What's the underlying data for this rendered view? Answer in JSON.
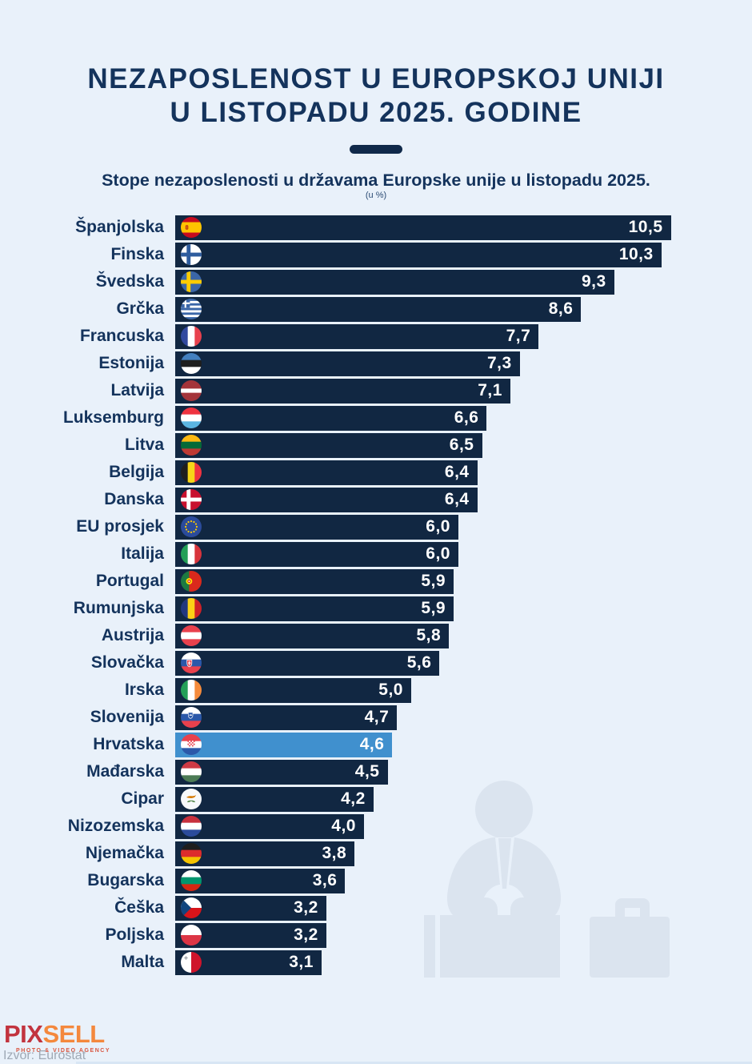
{
  "title": {
    "line1": "NEZAPOSLENOST U EUROPSKOJ UNIJI",
    "line2": "U LISTOPADU 2025. GODINE"
  },
  "subtitle": "Stope nezaposlenosti u državama Europske unije u listopadu 2025.",
  "unit_note": "(u %)",
  "colors": {
    "background": "#E9F1FA",
    "bar": "#112742",
    "highlight": "#4090CE",
    "text": "#14335C",
    "value_text": "#FFFFFF",
    "watermark": "#DBE4EF",
    "logo_pix": "#C2333E",
    "logo_sell": "#F4883D"
  },
  "chart_data": {
    "type": "bar",
    "orientation": "horizontal",
    "unit": "%",
    "xlim": [
      0,
      10.5
    ],
    "grid": false,
    "legend": "none",
    "highlight_category": "Hrvatska",
    "rows": [
      {
        "label": "Španjolska",
        "flag": "spain",
        "value": 10.5,
        "value_label": "10,5"
      },
      {
        "label": "Finska",
        "flag": "finland",
        "value": 10.3,
        "value_label": "10,3"
      },
      {
        "label": "Švedska",
        "flag": "sweden",
        "value": 9.3,
        "value_label": "9,3"
      },
      {
        "label": "Grčka",
        "flag": "greece",
        "value": 8.6,
        "value_label": "8,6"
      },
      {
        "label": "Francuska",
        "flag": "france",
        "value": 7.7,
        "value_label": "7,7"
      },
      {
        "label": "Estonija",
        "flag": "estonia",
        "value": 7.3,
        "value_label": "7,3"
      },
      {
        "label": "Latvija",
        "flag": "latvia",
        "value": 7.1,
        "value_label": "7,1"
      },
      {
        "label": "Luksemburg",
        "flag": "luxembourg",
        "value": 6.6,
        "value_label": "6,6"
      },
      {
        "label": "Litva",
        "flag": "lithuania",
        "value": 6.5,
        "value_label": "6,5"
      },
      {
        "label": "Belgija",
        "flag": "belgium",
        "value": 6.4,
        "value_label": "6,4"
      },
      {
        "label": "Danska",
        "flag": "denmark",
        "value": 6.4,
        "value_label": "6,4"
      },
      {
        "label": "EU prosjek",
        "flag": "eu",
        "value": 6.0,
        "value_label": "6,0"
      },
      {
        "label": "Italija",
        "flag": "italy",
        "value": 6.0,
        "value_label": "6,0"
      },
      {
        "label": "Portugal",
        "flag": "portugal",
        "value": 5.9,
        "value_label": "5,9"
      },
      {
        "label": "Rumunjska",
        "flag": "romania",
        "value": 5.9,
        "value_label": "5,9"
      },
      {
        "label": "Austrija",
        "flag": "austria",
        "value": 5.8,
        "value_label": "5,8"
      },
      {
        "label": "Slovačka",
        "flag": "slovakia",
        "value": 5.6,
        "value_label": "5,6"
      },
      {
        "label": "Irska",
        "flag": "ireland",
        "value": 5.0,
        "value_label": "5,0"
      },
      {
        "label": "Slovenija",
        "flag": "slovenia",
        "value": 4.7,
        "value_label": "4,7"
      },
      {
        "label": "Hrvatska",
        "flag": "croatia",
        "value": 4.6,
        "value_label": "4,6",
        "highlight": true
      },
      {
        "label": "Mađarska",
        "flag": "hungary",
        "value": 4.5,
        "value_label": "4,5"
      },
      {
        "label": "Cipar",
        "flag": "cyprus",
        "value": 4.2,
        "value_label": "4,2"
      },
      {
        "label": "Nizozemska",
        "flag": "netherlands",
        "value": 4.0,
        "value_label": "4,0"
      },
      {
        "label": "Njemačka",
        "flag": "germany",
        "value": 3.8,
        "value_label": "3,8"
      },
      {
        "label": "Bugarska",
        "flag": "bulgaria",
        "value": 3.6,
        "value_label": "3,6"
      },
      {
        "label": "Češka",
        "flag": "czechia",
        "value": 3.2,
        "value_label": "3,2"
      },
      {
        "label": "Poljska",
        "flag": "poland",
        "value": 3.2,
        "value_label": "3,2"
      },
      {
        "label": "Malta",
        "flag": "malta",
        "value": 3.1,
        "value_label": "3,1"
      }
    ]
  },
  "watermark": "unemployed-person-with-briefcase",
  "footer": {
    "logo_pix": "PIX",
    "logo_sell": "SELL",
    "logo_tagline": "PHOTO & VIDEO AGENCY",
    "source": "Izvor: Eurostat"
  }
}
